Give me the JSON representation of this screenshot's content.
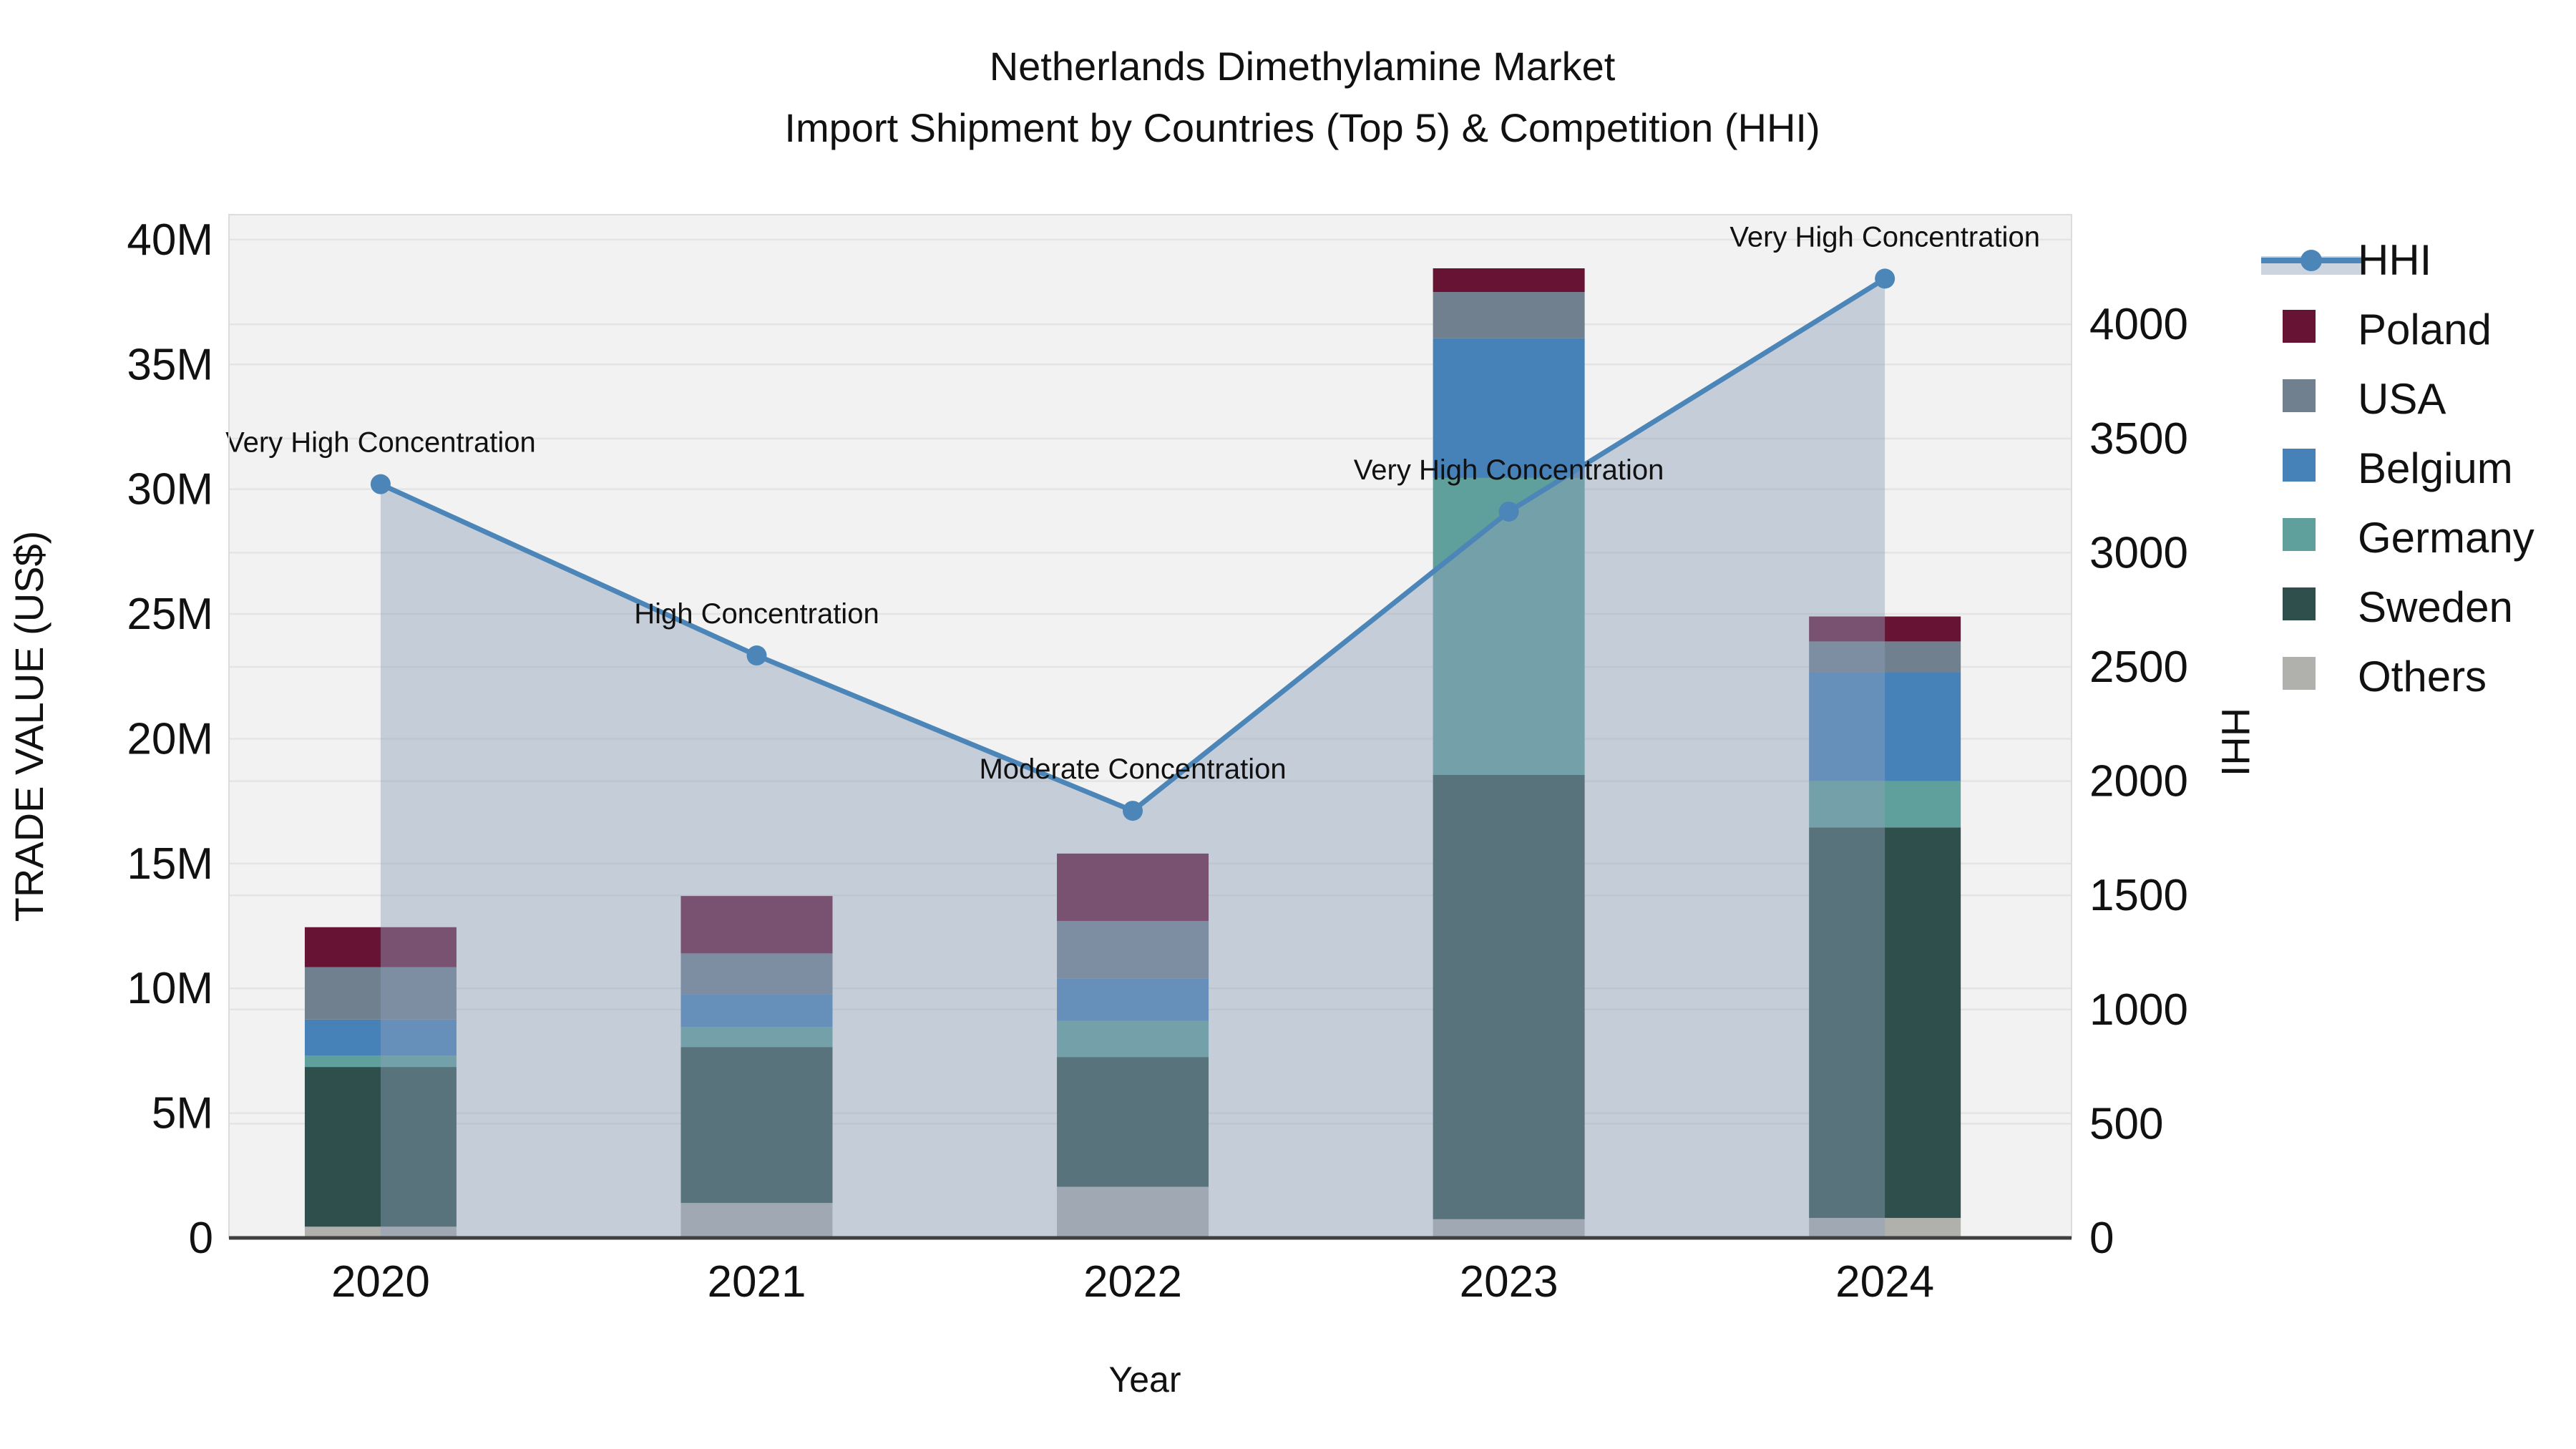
{
  "title": {
    "line1": "Netherlands Dimethylamine Market",
    "line2": "Import Shipment by Countries (Top 5) & Competition (HHI)"
  },
  "axes": {
    "left": {
      "label": "TRADE VALUE (US$)",
      "ticks": [
        {
          "value": 0,
          "label": "0"
        },
        {
          "value": 5,
          "label": "5M"
        },
        {
          "value": 10,
          "label": "10M"
        },
        {
          "value": 15,
          "label": "15M"
        },
        {
          "value": 20,
          "label": "20M"
        },
        {
          "value": 25,
          "label": "25M"
        },
        {
          "value": 30,
          "label": "30M"
        },
        {
          "value": 35,
          "label": "35M"
        },
        {
          "value": 40,
          "label": "40M"
        }
      ]
    },
    "right": {
      "label": "HHI",
      "ticks": [
        {
          "value": 0,
          "label": "0"
        },
        {
          "value": 500,
          "label": "500"
        },
        {
          "value": 1000,
          "label": "1000"
        },
        {
          "value": 1500,
          "label": "1500"
        },
        {
          "value": 2000,
          "label": "2000"
        },
        {
          "value": 2500,
          "label": "2500"
        },
        {
          "value": 3000,
          "label": "3000"
        },
        {
          "value": 3500,
          "label": "3500"
        },
        {
          "value": 4000,
          "label": "4000"
        }
      ]
    },
    "x": {
      "label": "Year"
    }
  },
  "legend": {
    "items": [
      {
        "name": "HHI",
        "type": "line",
        "color": "#4C86B8"
      },
      {
        "name": "Poland",
        "type": "swatch",
        "color": "#671333"
      },
      {
        "name": "USA",
        "type": "swatch",
        "color": "#70808F"
      },
      {
        "name": "Belgium",
        "type": "swatch",
        "color": "#4682B8"
      },
      {
        "name": "Germany",
        "type": "swatch",
        "color": "#5FA09D"
      },
      {
        "name": "Sweden",
        "type": "swatch",
        "color": "#2F4F4C"
      },
      {
        "name": "Others",
        "type": "swatch",
        "color": "#B0B1AD"
      }
    ]
  },
  "chart_data": {
    "type": "combo-stacked-bar-line",
    "categories": [
      "2020",
      "2021",
      "2022",
      "2023",
      "2024"
    ],
    "bar_unit": "million US$",
    "series": [
      {
        "name": "Others",
        "color": "#B0B1AD",
        "values": [
          0.45,
          1.4,
          2.05,
          0.75,
          0.8
        ]
      },
      {
        "name": "Sweden",
        "color": "#2F4F4C",
        "values": [
          6.4,
          6.25,
          5.2,
          17.8,
          15.65
        ]
      },
      {
        "name": "Germany",
        "color": "#5FA09D",
        "values": [
          0.45,
          0.8,
          1.45,
          11.9,
          1.85
        ]
      },
      {
        "name": "Belgium",
        "color": "#4682B8",
        "values": [
          1.45,
          1.3,
          1.7,
          5.6,
          4.35
        ]
      },
      {
        "name": "USA",
        "color": "#70808F",
        "values": [
          2.1,
          1.65,
          2.3,
          1.85,
          1.25
        ]
      },
      {
        "name": "Poland",
        "color": "#671333",
        "values": [
          1.6,
          2.3,
          2.7,
          0.95,
          1.0
        ]
      }
    ],
    "bar_totals": [
      12.45,
      13.7,
      15.4,
      38.85,
      24.9
    ],
    "line_series": {
      "name": "HHI",
      "color": "#4C86B8",
      "fill_color": "#8DA0BA",
      "fill_opacity": 0.45,
      "values": [
        3300,
        2550,
        1870,
        3180,
        4200
      ]
    },
    "annotations": [
      "Very High Concentration",
      "High Concentration",
      "Moderate Concentration",
      "Very High Concentration",
      "Very High Concentration"
    ],
    "title": "Netherlands Dimethylamine Market — Import Shipment by Countries (Top 5) & Competition (HHI)",
    "xlabel": "Year",
    "ylabel_left": "TRADE VALUE (US$)",
    "ylabel_right": "HHI",
    "ylim_left": [
      0,
      41
    ],
    "ylim_right": [
      0,
      4480
    ],
    "grid": true,
    "legend_position": "right",
    "plot_bg": "#F2F2F2",
    "grid_color": "#E4E4E4",
    "spine_color": "#3F3F3F"
  }
}
